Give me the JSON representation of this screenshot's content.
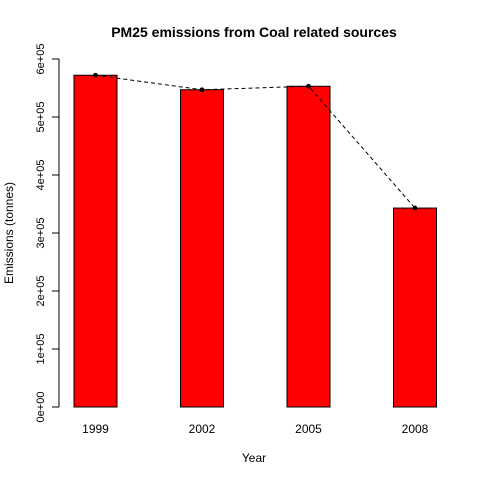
{
  "chart_data": {
    "type": "bar",
    "title": "PM25 emissions from Coal related sources",
    "xlabel": "Year",
    "ylabel": "Emissions (tonnes)",
    "categories": [
      "1999",
      "2002",
      "2005",
      "2008"
    ],
    "values": [
      572000,
      547000,
      553000,
      343000
    ],
    "ylim": [
      0,
      600000
    ],
    "yticks": [
      0,
      100000,
      200000,
      300000,
      400000,
      500000,
      600000
    ],
    "ytick_labels": [
      "0e+00",
      "1e+05",
      "2e+05",
      "3e+05",
      "4e+05",
      "5e+05",
      "6e+05"
    ],
    "grid": false,
    "legend": "none",
    "overlay": {
      "type": "line",
      "style": "dashed",
      "markers": "filled-circle"
    },
    "colors": {
      "bar_fill": "#ff0000",
      "bar_stroke": "#000000",
      "line": "#000000"
    }
  }
}
